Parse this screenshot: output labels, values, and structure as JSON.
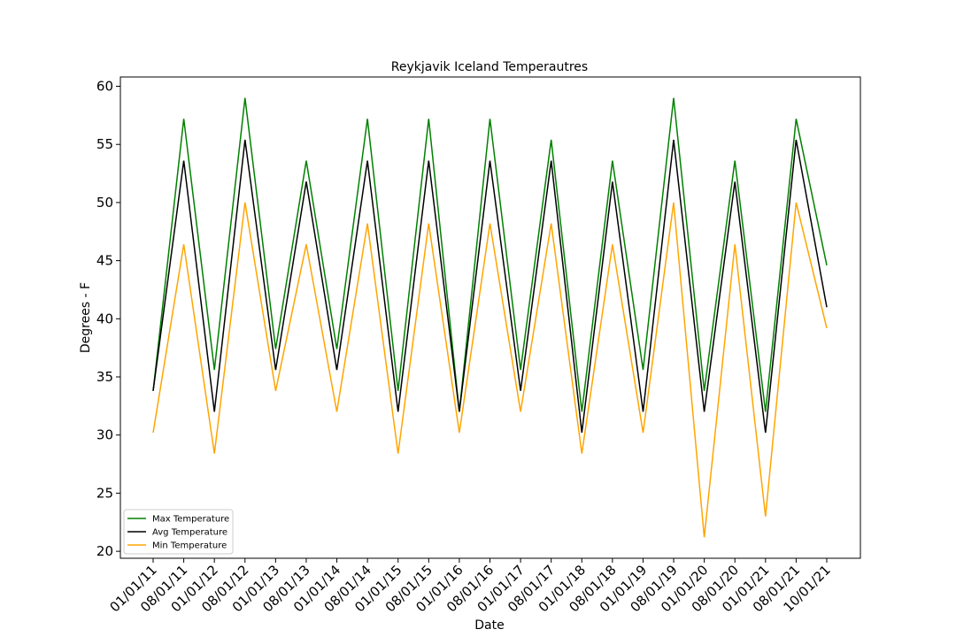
{
  "chart_data": {
    "type": "line",
    "title": "Reykjavik Iceland Temperautres",
    "xlabel": "Date",
    "ylabel": "Degrees - F",
    "ylim": [
      19.4,
      60.8
    ],
    "yticks": [
      20,
      25,
      30,
      35,
      40,
      45,
      50,
      55,
      60
    ],
    "categories": [
      "01/01/11",
      "08/01/11",
      "01/01/12",
      "08/01/12",
      "01/01/13",
      "08/01/13",
      "01/01/14",
      "08/01/14",
      "01/01/15",
      "08/01/15",
      "01/01/16",
      "08/01/16",
      "01/01/17",
      "08/01/17",
      "01/01/18",
      "08/01/18",
      "01/01/19",
      "08/01/19",
      "01/01/20",
      "08/01/20",
      "01/01/21",
      "08/01/21",
      "10/01/21"
    ],
    "grid": false,
    "legend_position": "lower-left",
    "series": [
      {
        "name": "Max Temperature",
        "color": "#008000",
        "values": [
          33.8,
          57.2,
          35.6,
          59.0,
          37.4,
          53.6,
          37.4,
          57.2,
          33.8,
          57.2,
          32.0,
          57.2,
          35.6,
          55.4,
          32.0,
          53.6,
          35.6,
          59.0,
          33.8,
          53.6,
          32.0,
          57.2,
          44.6
        ]
      },
      {
        "name": "Avg Temperature",
        "color": "#000000",
        "values": [
          33.8,
          53.6,
          32.0,
          55.4,
          35.6,
          51.8,
          35.6,
          53.6,
          32.0,
          53.6,
          32.0,
          53.6,
          33.8,
          53.6,
          30.2,
          51.8,
          32.0,
          55.4,
          32.0,
          51.8,
          30.2,
          55.4,
          41.0
        ]
      },
      {
        "name": "Min Temperature",
        "color": "#ffa500",
        "values": [
          30.2,
          46.4,
          28.4,
          50.0,
          33.8,
          46.4,
          32.0,
          48.2,
          28.4,
          48.2,
          30.2,
          48.2,
          32.0,
          48.2,
          28.4,
          46.4,
          30.2,
          50.0,
          21.2,
          46.4,
          23.0,
          50.0,
          39.2
        ]
      }
    ]
  }
}
